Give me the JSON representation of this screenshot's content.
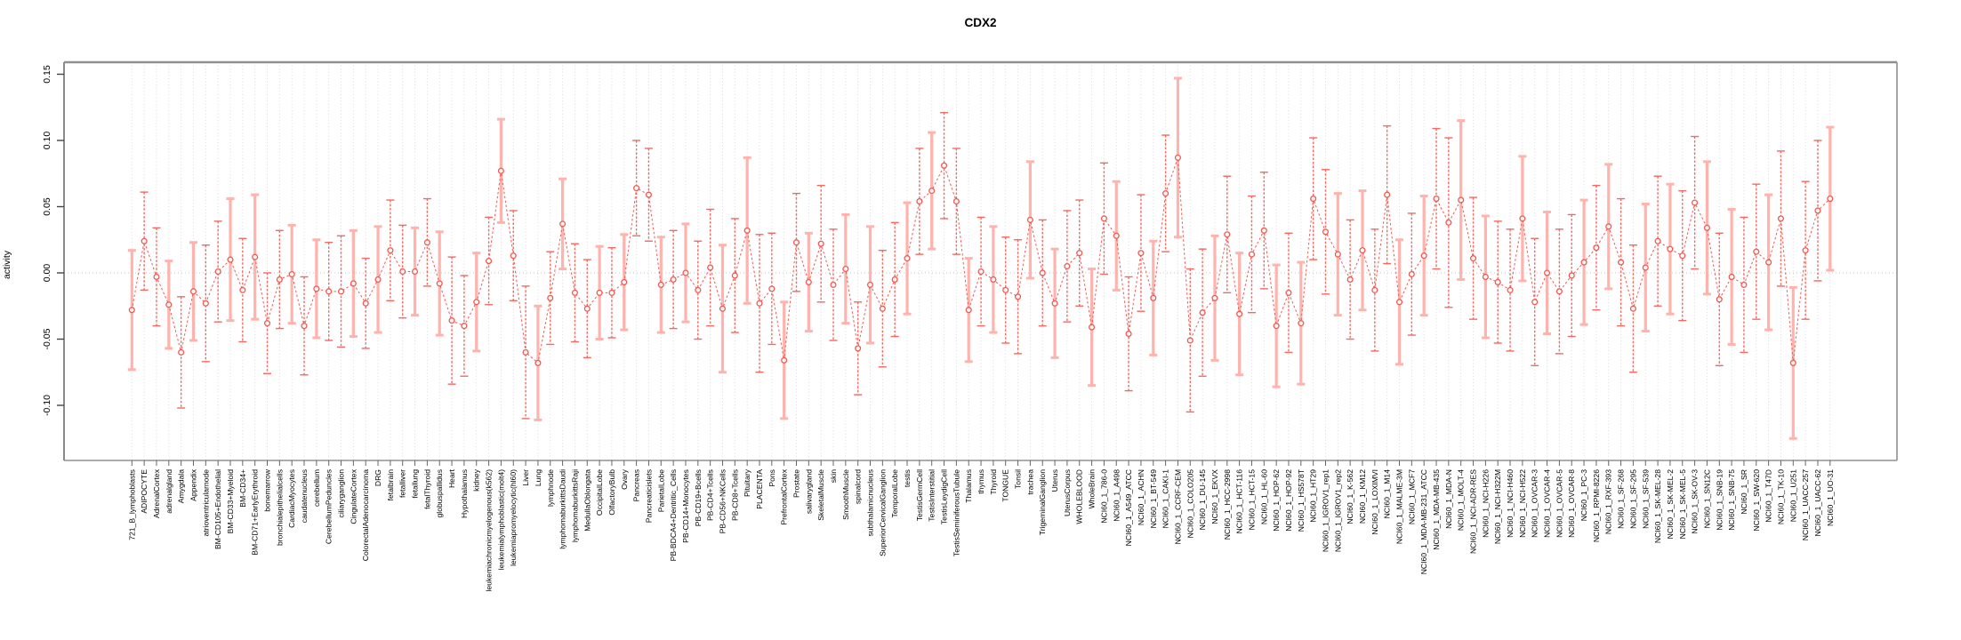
{
  "title": "CDX2",
  "chart_data": {
    "type": "line",
    "title": "CDX2",
    "xlabel": "",
    "ylabel": "activity",
    "ylim": [
      -0.14,
      0.16
    ],
    "grid": "dotted vertical line per category; dotted horizontal line at 0",
    "legend": "none",
    "marker": "open-circle",
    "line_style": "dashed",
    "point_color": "#f25750",
    "errorbar_color": "#f46961",
    "errorbar_color_pale": "#ffb3ac",
    "axis_color": "#909090",
    "yticks": [
      {
        "v": 0.15,
        "label": "0.15"
      },
      {
        "v": 0.1,
        "label": "0.10"
      },
      {
        "v": 0.05,
        "label": "0.05"
      },
      {
        "v": 0.0,
        "label": "0.00"
      },
      {
        "v": -0.05,
        "label": "-0.05"
      },
      {
        "v": -0.1,
        "label": "-0.10"
      }
    ],
    "categories": [
      "721_B_lymphoblasts",
      "ADIPOCYTE",
      "AdrenalCortex",
      "adrenalgland",
      "Amygdala",
      "Appendix",
      "atrioventricularnode",
      "BM-CD105+Endothelial",
      "BM-CD33+Myeloid",
      "BM-CD34+",
      "BM-CD71+EarlyErythroid",
      "bonemarrow",
      "bronchialepithelialcells",
      "CardiacMyocytes",
      "caudatenucleus",
      "cerebellum",
      "CerebellumPeduncles",
      "ciliaryganglion",
      "CingulateCortex",
      "ColorectalAdenocarcinoma",
      "DRG",
      "fetalbrain",
      "fetalliver",
      "fetallung",
      "fetalThyroid",
      "globuspallidus",
      "Heart",
      "Hypothalamus",
      "kidney",
      "leukemiachronicmyelogenous(k562)",
      "leukemialymphoblastic(molt4)",
      "leukemiapromyelocytic(hl60)",
      "Liver",
      "Lung",
      "lymphnode",
      "lymphomaburkittsDaudi",
      "lymphomaburkittsRaji",
      "MedullaOblongata",
      "OccipitalLobe",
      "OlfactoryBulb",
      "Ovary",
      "Pancreas",
      "Pancreaticislets",
      "ParietalLobe",
      "PB-BDCA4+Dentritic_Cells",
      "PB-CD14+Monocytes",
      "PB-CD19+Bcells",
      "PB-CD4+Tcells",
      "PB-CD56+NKCells",
      "PB-CD8+Tcells",
      "Pituitary",
      "PLACENTA",
      "Pons",
      "PrefrontalCortex",
      "Prostate",
      "salivarygland",
      "SkeletalMuscle",
      "skin",
      "SmoothMuscle",
      "spinalcord",
      "subthalamicnucleus",
      "SuperiorCervicalGanglion",
      "TemporalLobe",
      "testis",
      "TestisGermCell",
      "TestisInterstitial",
      "TestisLeydigCell",
      "TestisSeminiferousTubule",
      "Thalamus",
      "thymus",
      "Thyroid",
      "TONGUE",
      "Tonsil",
      "trachea",
      "TrigeminalGanglion",
      "Uterus",
      "UterusCorpus",
      "WHOLEBLOOD",
      "WholeBrain",
      "NCI60_1_786-0",
      "NCI60_1_A498",
      "NCI60_1_A549_ATCC",
      "NCI60_1_ACHN",
      "NCI60_1_BT-549",
      "NCI60_1_CAKI-1",
      "NCI60_1_CCRF-CEM",
      "NCI60_1_COLO205",
      "NCI60_1_DU-145",
      "NCI60_1_EKVX",
      "NCI60_1_HCC-2998",
      "NCI60_1_HCT-116",
      "NCI60_1_HCT-15",
      "NCI60_1_HL-60",
      "NCI60_1_HOP-62",
      "NCI60_1_HOP-92",
      "NCI60_1_HS578T",
      "NCI60_1_HT29",
      "NCI60_1_IGROV1_rep1",
      "NCI60_1_IGROV1_rep2",
      "NCI60_1_K-562",
      "NCI60_1_KM12",
      "NCI60_1_LOXIMVI",
      "NCI60_1_M14",
      "NCI60_1_MALME-3M",
      "NCI60_1_MCF7",
      "NCI60_1_MDA-MB-231_ATCC",
      "NCI60_1_MDA-MB-435",
      "NCI60_1_MDA-N",
      "NCI60_1_MOLT-4",
      "NCI60_1_NCI-ADR-RES",
      "NCI60_1_NCI-H226",
      "NCI60_1_NCI-H322M",
      "NCI60_1_NCI-H460",
      "NCI60_1_NCI-H522",
      "NCI60_1_OVCAR-3",
      "NCI60_1_OVCAR-4",
      "NCI60_1_OVCAR-5",
      "NCI60_1_OVCAR-8",
      "NCI60_1_PC-3",
      "NCI60_1_RPMI-8226",
      "NCI60_1_RXF-393",
      "NCI60_1_SF-268",
      "NCI60_1_SF-295",
      "NCI60_1_SF-539",
      "NCI60_1_SK-MEL-28",
      "NCI60_1_SK-MEL-2",
      "NCI60_1_SK-MEL-5",
      "NCI60_1_SK-OV-3",
      "NCI60_1_SN12C",
      "NCI60_1_SNB-19",
      "NCI60_1_SNB-75",
      "NCI60_1_SR",
      "NCI60_1_SW-620",
      "NCI60_1_T47D",
      "NCI60_1_TK-10",
      "NCI60_1_U251",
      "NCI60_1_UACC-257",
      "NCI60_1_UACC-62",
      "NCI60_1_UO-31"
    ],
    "values": [
      -0.028,
      0.024,
      -0.003,
      -0.024,
      -0.06,
      -0.014,
      -0.023,
      0.001,
      0.01,
      -0.013,
      0.012,
      -0.038,
      -0.005,
      -0.001,
      -0.04,
      -0.012,
      -0.014,
      -0.014,
      -0.008,
      -0.023,
      -0.005,
      0.017,
      0.001,
      0.001,
      0.023,
      -0.008,
      -0.036,
      -0.04,
      -0.022,
      0.009,
      0.077,
      0.013,
      -0.06,
      -0.068,
      -0.019,
      0.037,
      -0.015,
      -0.027,
      -0.015,
      -0.015,
      -0.007,
      0.064,
      0.059,
      -0.009,
      -0.005,
      0.0,
      -0.013,
      0.004,
      -0.027,
      -0.002,
      0.032,
      -0.023,
      -0.012,
      -0.066,
      0.023,
      -0.007,
      0.022,
      -0.009,
      0.003,
      -0.057,
      -0.009,
      -0.027,
      -0.005,
      0.011,
      0.054,
      0.062,
      0.081,
      0.054,
      -0.028,
      0.001,
      -0.005,
      -0.013,
      -0.018,
      0.04,
      0.0,
      -0.023,
      0.005,
      0.015,
      -0.041,
      0.041,
      0.028,
      -0.046,
      0.015,
      -0.019,
      0.06,
      0.087,
      -0.051,
      -0.03,
      -0.019,
      0.029,
      -0.031,
      0.014,
      0.032,
      -0.04,
      -0.015,
      -0.038,
      0.056,
      0.031,
      0.014,
      -0.005,
      0.017,
      -0.013,
      0.059,
      -0.022,
      -0.001,
      0.013,
      0.056,
      0.038,
      0.055,
      0.011,
      -0.003,
      -0.007,
      -0.013,
      0.041,
      -0.022,
      0.0,
      -0.014,
      -0.002,
      0.008,
      0.019,
      0.035,
      0.008,
      -0.027,
      0.004,
      0.024,
      0.018,
      0.013,
      0.053,
      0.034,
      -0.02,
      -0.003,
      -0.009,
      0.016,
      0.008,
      0.041,
      -0.068,
      0.017,
      0.047,
      0.056
    ],
    "err": [
      0.045,
      0.037,
      0.037,
      0.033,
      0.042,
      0.037,
      0.044,
      0.038,
      0.046,
      0.039,
      0.047,
      0.038,
      0.037,
      0.037,
      0.037,
      0.037,
      0.037,
      0.042,
      0.04,
      0.034,
      0.04,
      0.038,
      0.035,
      0.033,
      0.033,
      0.039,
      0.048,
      0.038,
      0.037,
      0.033,
      0.039,
      0.034,
      0.05,
      0.043,
      0.035,
      0.034,
      0.037,
      0.037,
      0.035,
      0.034,
      0.036,
      0.036,
      0.035,
      0.036,
      0.037,
      0.037,
      0.037,
      0.044,
      0.048,
      0.043,
      0.055,
      0.052,
      0.042,
      0.044,
      0.037,
      0.037,
      0.044,
      0.042,
      0.041,
      0.035,
      0.044,
      0.044,
      0.043,
      0.042,
      0.04,
      0.044,
      0.04,
      0.04,
      0.039,
      0.041,
      0.04,
      0.04,
      0.043,
      0.044,
      0.04,
      0.041,
      0.042,
      0.04,
      0.044,
      0.042,
      0.041,
      0.043,
      0.044,
      0.043,
      0.044,
      0.06,
      0.054,
      0.048,
      0.047,
      0.044,
      0.046,
      0.044,
      0.044,
      0.046,
      0.045,
      0.046,
      0.046,
      0.047,
      0.046,
      0.045,
      0.045,
      0.046,
      0.052,
      0.047,
      0.046,
      0.045,
      0.053,
      0.064,
      0.06,
      0.046,
      0.046,
      0.046,
      0.046,
      0.047,
      0.048,
      0.046,
      0.047,
      0.046,
      0.047,
      0.047,
      0.047,
      0.048,
      0.048,
      0.048,
      0.049,
      0.049,
      0.049,
      0.05,
      0.05,
      0.05,
      0.051,
      0.051,
      0.051,
      0.051,
      0.051,
      0.057,
      0.052,
      0.053,
      0.054
    ]
  }
}
